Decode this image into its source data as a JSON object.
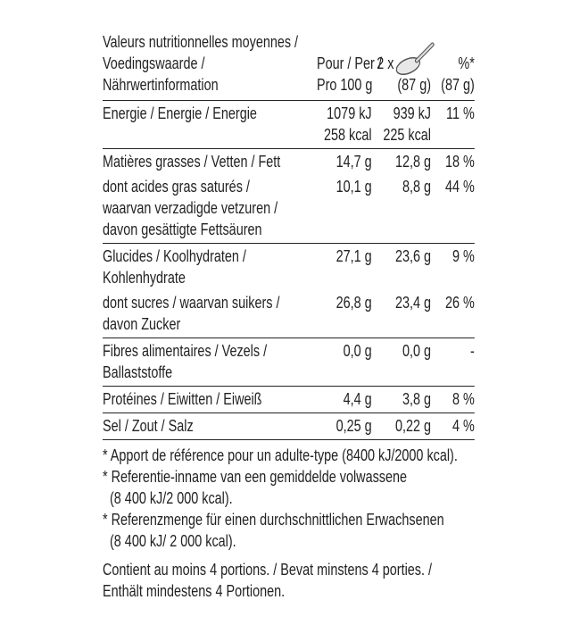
{
  "table": {
    "header": {
      "label": [
        "Valeurs nutritionnelles moyennes /",
        "Voedingswaarde /",
        "Nährwertinformation"
      ],
      "per100": [
        "Pour / Per /",
        "Pro 100 g"
      ],
      "serving": [
        "2 x",
        "(87 g)"
      ],
      "percent": [
        "%*",
        "(87 g)"
      ]
    },
    "groups": [
      [
        {
          "label": [
            "Energie / Energie / Energie"
          ],
          "per100": [
            "1079 kJ",
            "258 kcal"
          ],
          "serving": [
            "939 kJ",
            "225 kcal"
          ],
          "percent": [
            "11 %"
          ]
        }
      ],
      [
        {
          "label": [
            "Matières grasses / Vetten / Fett"
          ],
          "per100": [
            "14,7 g"
          ],
          "serving": [
            "12,8 g"
          ],
          "percent": [
            "18 %"
          ]
        },
        {
          "label": [
            "dont acides gras saturés /",
            "waarvan verzadigde vetzuren /",
            "davon gesättigte Fettsäuren"
          ],
          "per100": [
            "10,1 g"
          ],
          "serving": [
            "8,8 g"
          ],
          "percent": [
            "44 %"
          ]
        }
      ],
      [
        {
          "label": [
            "Glucides / Koolhydraten /",
            "Kohlenhydrate"
          ],
          "per100": [
            "27,1 g"
          ],
          "serving": [
            "23,6 g"
          ],
          "percent": [
            "9 %"
          ]
        },
        {
          "label": [
            "dont sucres / waarvan suikers /",
            "davon Zucker"
          ],
          "per100": [
            "26,8 g"
          ],
          "serving": [
            "23,4 g"
          ],
          "percent": [
            "26 %"
          ]
        }
      ],
      [
        {
          "label": [
            "Fibres alimentaires / Vezels /",
            "Ballaststoffe"
          ],
          "per100": [
            "0,0 g"
          ],
          "serving": [
            "0,0 g"
          ],
          "percent": [
            "-"
          ]
        }
      ],
      [
        {
          "label": [
            "Protéines / Eiwitten / Eiweiß"
          ],
          "per100": [
            "4,4 g"
          ],
          "serving": [
            "3,8 g"
          ],
          "percent": [
            "8 %"
          ]
        }
      ],
      [
        {
          "label": [
            "Sel / Zout / Salz"
          ],
          "per100": [
            "0,25 g"
          ],
          "serving": [
            "0,22 g"
          ],
          "percent": [
            "4 %"
          ]
        }
      ]
    ]
  },
  "footnotes": [
    [
      "* Apport de référence pour un adulte-type (8400 kJ/2000 kcal)."
    ],
    [
      "* Referentie-inname van een gemiddelde volwassene",
      "(8 400 kJ/2 000 kcal)."
    ],
    [
      "* Referenzmenge für einen durchschnittlichen Erwachsenen",
      "(8 400 kJ/ 2 000 kcal)."
    ]
  ],
  "footer": [
    "Contient au moins 4 portions. / Bevat minstens 4 porties. /",
    "Enthält mindestens 4 Portionen."
  ]
}
